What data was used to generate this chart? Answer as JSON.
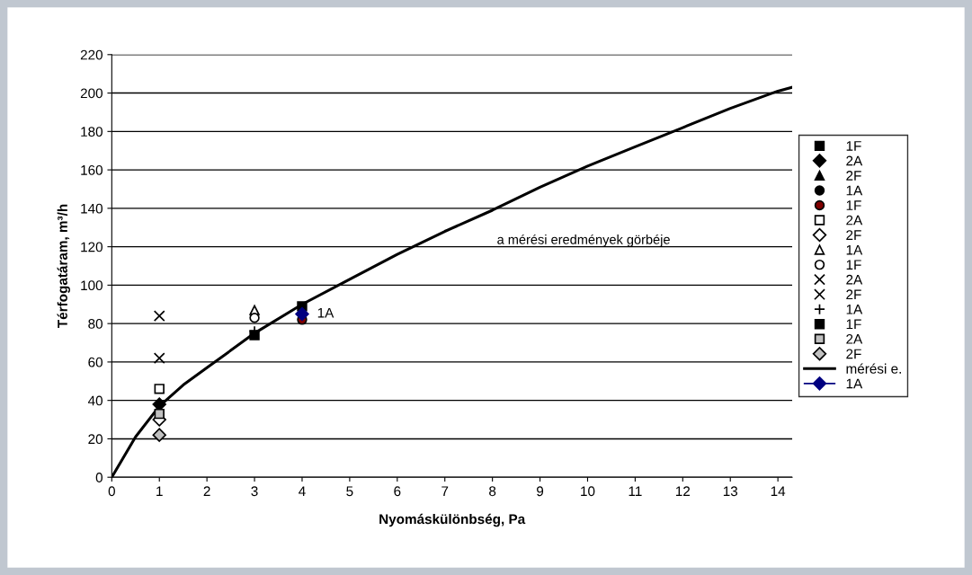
{
  "chart_data": {
    "type": "scatter",
    "xlabel": "Nyomáskülönbség, Pa",
    "ylabel": "Térfogatáram, m³/h",
    "xlim": [
      0,
      14.3
    ],
    "xticks": [
      0,
      1,
      2,
      3,
      4,
      5,
      6,
      7,
      8,
      9,
      10,
      11,
      12,
      13,
      14
    ],
    "ylim": [
      0,
      220
    ],
    "yticks": [
      0,
      20,
      40,
      60,
      80,
      100,
      120,
      140,
      160,
      180,
      200,
      220
    ],
    "grid": "y",
    "legend": "right",
    "series": [
      {
        "name": "1F",
        "marker": "square",
        "color": "#000000",
        "x": [
          4
        ],
        "values": [
          89
        ]
      },
      {
        "name": "2A",
        "marker": "diamond",
        "color": "#000000",
        "x": [
          1
        ],
        "values": [
          38
        ]
      },
      {
        "name": "2F",
        "marker": "triangle",
        "color": "#000000"
      },
      {
        "name": "1A",
        "marker": "circle",
        "color": "#000000"
      },
      {
        "name": "1F",
        "marker": "circle",
        "color": "#800000",
        "x": [
          4
        ],
        "values": [
          82
        ]
      },
      {
        "name": "2A",
        "marker": "square",
        "color": "#ffffff",
        "x": [
          1
        ],
        "values": [
          46
        ]
      },
      {
        "name": "2F",
        "marker": "diamond",
        "color": "#ffffff",
        "x": [
          1
        ],
        "values": [
          30
        ]
      },
      {
        "name": "1A",
        "marker": "triangle",
        "color": "#ffffff",
        "x": [
          3
        ],
        "values": [
          87
        ]
      },
      {
        "name": "1F",
        "marker": "circle",
        "color": "#ffffff",
        "x": [
          3
        ],
        "values": [
          83
        ]
      },
      {
        "name": "2A",
        "marker": "cross",
        "color": "#000000",
        "x": [
          1
        ],
        "values": [
          84
        ]
      },
      {
        "name": "2F",
        "marker": "cross",
        "color": "#000000",
        "x": [
          1
        ],
        "values": [
          62
        ]
      },
      {
        "name": "1A",
        "marker": "plus",
        "color": "#000000",
        "x": [
          3
        ],
        "values": [
          76
        ]
      },
      {
        "name": "1F",
        "marker": "square",
        "color": "#000000",
        "x": [
          3
        ],
        "values": [
          74
        ]
      },
      {
        "name": "2A",
        "marker": "square",
        "color": "#c0c0c0",
        "x": [
          1
        ],
        "values": [
          33
        ]
      },
      {
        "name": "2F",
        "marker": "diamond",
        "color": "#c0c0c0",
        "x": [
          1
        ],
        "values": [
          22
        ]
      },
      {
        "name": "mérési e.",
        "type": "line",
        "marker": "none",
        "color": "#000000",
        "x": [
          0,
          0.5,
          1,
          1.5,
          2,
          3,
          4,
          5,
          6,
          7,
          8,
          9,
          10,
          11,
          12,
          13,
          14,
          14.3
        ],
        "values": [
          0,
          21,
          37,
          48,
          57,
          75,
          90,
          103,
          116,
          128,
          139,
          151,
          162,
          172,
          182,
          192,
          201,
          203
        ]
      },
      {
        "name": "1A",
        "type": "line",
        "marker": "diamond",
        "color": "#000080",
        "x": [
          4
        ],
        "values": [
          85
        ]
      }
    ],
    "annotations": [
      "a mérési eredmények görbéje",
      {
        "text": "1A",
        "x": 4,
        "y": 85
      }
    ]
  }
}
